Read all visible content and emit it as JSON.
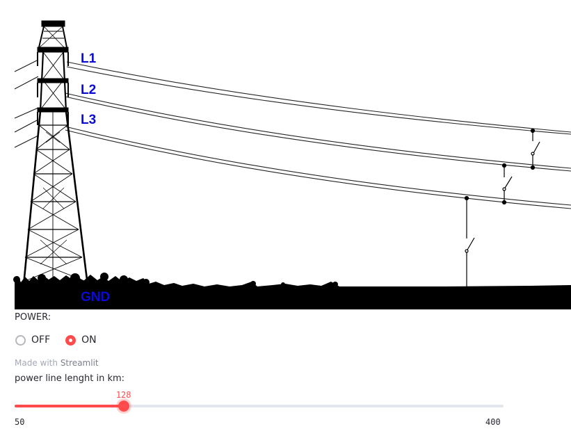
{
  "scene": {
    "labels": {
      "l1": "L1",
      "l2": "L2",
      "l3": "L3",
      "gnd": "GND"
    },
    "label_color": "#0a0ad6"
  },
  "power": {
    "caption": "POWER:",
    "options": [
      {
        "label": "OFF",
        "selected": false
      },
      {
        "label": "ON",
        "selected": true
      }
    ]
  },
  "footer": {
    "made_with": "Made with",
    "brand": "Streamlit"
  },
  "slider": {
    "caption": "power line lenght in km:",
    "min": 50,
    "max": 400,
    "value": 128,
    "min_label": "50",
    "max_label": "400",
    "value_label": "128",
    "accent": "#ff4b4b"
  }
}
